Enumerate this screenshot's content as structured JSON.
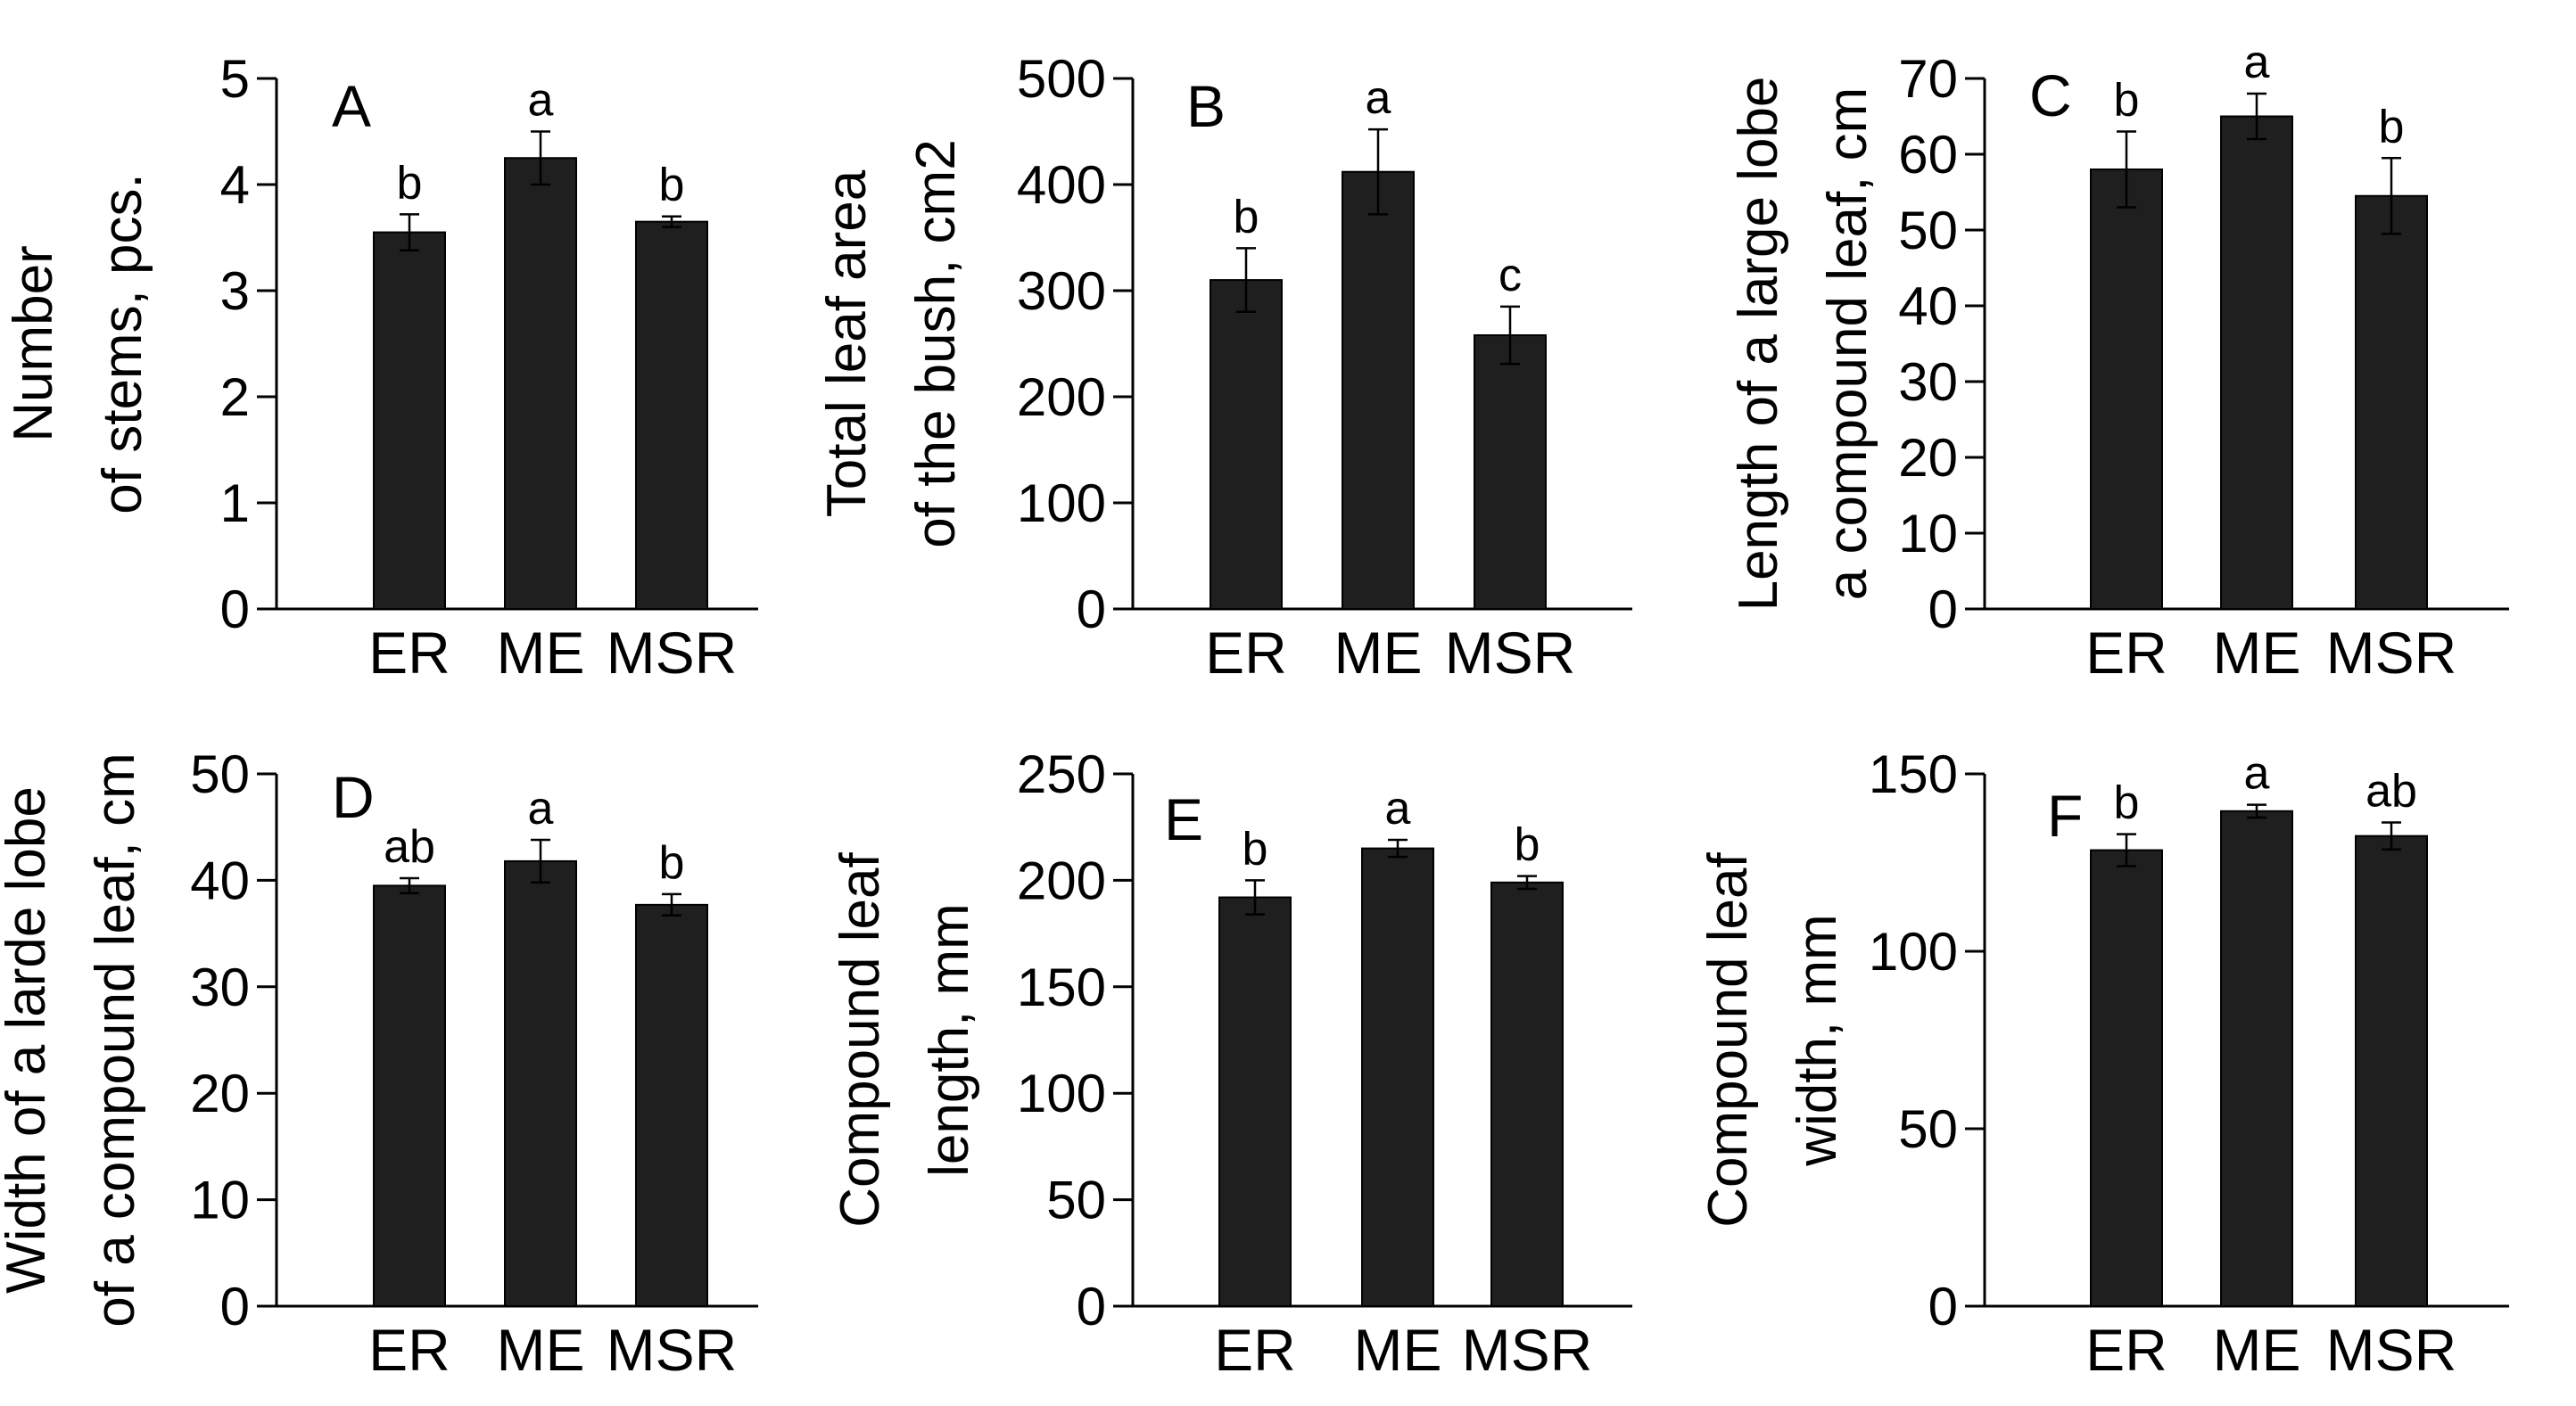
{
  "chart_data": [
    {
      "type": "bar",
      "panel": "A",
      "categories": [
        "ER",
        "ME",
        "MSR"
      ],
      "values": [
        3.55,
        4.25,
        3.65
      ],
      "errors": [
        0.17,
        0.25,
        0.05
      ],
      "significance": [
        "b",
        "a",
        "b"
      ],
      "ylabel": [
        "Number",
        "of stems, pcs."
      ],
      "ylim": [
        0,
        5
      ],
      "yticks": [
        0,
        1,
        2,
        3,
        4,
        5
      ]
    },
    {
      "type": "bar",
      "panel": "B",
      "categories": [
        "ER",
        "ME",
        "MSR"
      ],
      "values": [
        310,
        412,
        258
      ],
      "errors": [
        30,
        40,
        27
      ],
      "significance": [
        "b",
        "a",
        "c"
      ],
      "ylabel": [
        "Total leaf area",
        "of the bush, cm2"
      ],
      "ylim": [
        0,
        500
      ],
      "yticks": [
        0,
        100,
        200,
        300,
        400,
        500
      ]
    },
    {
      "type": "bar",
      "panel": "C",
      "categories": [
        "ER",
        "ME",
        "MSR"
      ],
      "values": [
        58,
        65,
        54.5
      ],
      "errors": [
        5,
        3,
        5
      ],
      "significance": [
        "b",
        "a",
        "b"
      ],
      "ylabel": [
        "Length of a large lobe",
        "a compound leaf, cm"
      ],
      "ylim": [
        0,
        70
      ],
      "yticks": [
        0,
        10,
        20,
        30,
        40,
        50,
        60,
        70
      ]
    },
    {
      "type": "bar",
      "panel": "D",
      "categories": [
        "ER",
        "ME",
        "MSR"
      ],
      "values": [
        39.5,
        41.8,
        37.7
      ],
      "errors": [
        0.7,
        2,
        1
      ],
      "significance": [
        "ab",
        "a",
        "b"
      ],
      "ylabel": [
        "Width of a larde lobe",
        "of a compound leaf, cm"
      ],
      "ylim": [
        0,
        50
      ],
      "yticks": [
        0,
        10,
        20,
        30,
        40,
        50
      ]
    },
    {
      "type": "bar",
      "panel": "E",
      "categories": [
        "ER",
        "ME",
        "MSR"
      ],
      "values": [
        192,
        215,
        199
      ],
      "errors": [
        8,
        4,
        3
      ],
      "significance": [
        "b",
        "a",
        "b"
      ],
      "ylabel": [
        "Compound leaf",
        "length, mm"
      ],
      "ylim": [
        0,
        250
      ],
      "yticks": [
        0,
        50,
        100,
        150,
        200,
        250
      ]
    },
    {
      "type": "bar",
      "panel": "F",
      "categories": [
        "ER",
        "ME",
        "MSR"
      ],
      "values": [
        128.5,
        139.5,
        132.5
      ],
      "errors": [
        4.5,
        1.8,
        3.8
      ],
      "significance": [
        "b",
        "a",
        "ab"
      ],
      "ylabel": [
        "Compound leaf",
        "width, mm"
      ],
      "ylim": [
        0,
        150
      ],
      "yticks": [
        0,
        50,
        100,
        150
      ]
    }
  ]
}
